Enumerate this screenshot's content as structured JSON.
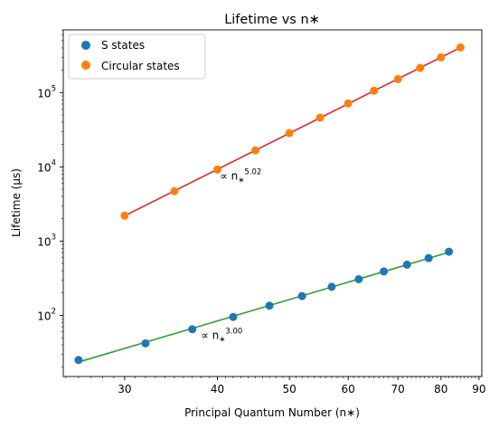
{
  "chart_data": {
    "type": "scatter",
    "title": "Lifetime vs n∗",
    "xlabel": "Principal Quantum Number (n∗)",
    "ylabel": "Lifetime (μs)",
    "xscale": "log",
    "yscale": "log",
    "xlim": [
      24.8,
      90.8
    ],
    "ylim": [
      15,
      700000
    ],
    "xticks": [
      30,
      40,
      50,
      60,
      70,
      80,
      90
    ],
    "xtick_labels": [
      "30",
      "40",
      "50",
      "60",
      "70",
      "80",
      "90"
    ],
    "yticks": [
      100,
      1000,
      10000,
      100000
    ],
    "ytick_labels": [
      "10",
      "10",
      "10",
      "10"
    ],
    "ytick_exponents": [
      "2",
      "3",
      "4",
      "5"
    ],
    "grid": false,
    "legend": "top-left",
    "series": [
      {
        "name": "S states",
        "marker_color": "#1f77b4",
        "fit_color": "#2ca02c",
        "x": [
          26,
          32,
          37,
          42,
          47,
          52,
          57,
          62,
          67,
          72,
          77,
          82
        ],
        "y": [
          25,
          42,
          65,
          95,
          135,
          182,
          242,
          307,
          390,
          482,
          590,
          720
        ],
        "fit_exponent": 3.0,
        "annotation": {
          "prefix": "∝ n",
          "sub": "∗",
          "sup": "3.00",
          "x": 38,
          "y": 48
        }
      },
      {
        "name": "Circular states",
        "marker_color": "#ff7f0e",
        "fit_color": "#d62728",
        "x": [
          30,
          35,
          40,
          45,
          50,
          55,
          60,
          65,
          70,
          75,
          80,
          85
        ],
        "y": [
          2200,
          4700,
          9200,
          16700,
          28500,
          46000,
          71500,
          106000,
          152000,
          215000,
          298000,
          405000
        ],
        "fit_exponent": 5.02,
        "annotation": {
          "prefix": "∝ n",
          "sub": "∗",
          "sup": "5.02",
          "x": 40.3,
          "y": 6700
        }
      }
    ]
  }
}
